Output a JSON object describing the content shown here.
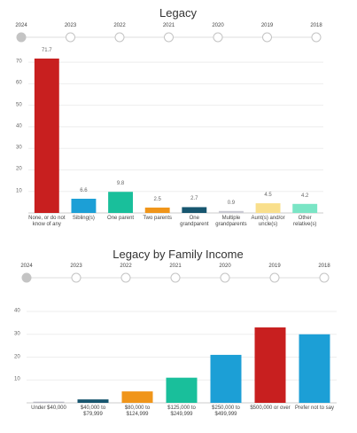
{
  "chart_data": [
    {
      "type": "bar",
      "title": "Legacy",
      "years": [
        "2024",
        "2023",
        "2022",
        "2021",
        "2020",
        "2019",
        "2018"
      ],
      "categories": [
        "None, or do not know of any",
        "Sibling(s)",
        "One parent",
        "Two parents",
        "One grandparent",
        "Multiple grandparents",
        "Aunt(s) and/or uncle(s)",
        "Other relative(s)"
      ],
      "values": [
        71.7,
        6.6,
        9.8,
        2.5,
        2.7,
        0.9,
        4.5,
        4.2
      ],
      "colors": [
        "#c81f1f",
        "#1c9fd6",
        "#19bf9b",
        "#f0951a",
        "#17566f",
        "#c9c9d2",
        "#f9df8c",
        "#7ae5c5"
      ],
      "ylim": [
        0,
        75
      ],
      "yticks": [
        10,
        20,
        30,
        40,
        50,
        60,
        70
      ],
      "grid": true,
      "show_values": true
    },
    {
      "type": "bar",
      "title": "Legacy by Family Income",
      "years": [
        "2024",
        "2023",
        "2022",
        "2021",
        "2020",
        "2019",
        "2018"
      ],
      "categories": [
        "Under $40,000",
        "$40,000 to $79,999",
        "$80,000 to $124,999",
        "$125,000 to $249,999",
        "$250,000 to $499,999",
        "$500,000 or over",
        "Prefer not to say"
      ],
      "values": [
        0.5,
        1.5,
        5,
        11,
        21,
        33,
        30
      ],
      "colors": [
        "#b9b9c2",
        "#17566f",
        "#f0951a",
        "#19bf9b",
        "#1c9fd6",
        "#c81f1f",
        "#1c9fd6"
      ],
      "ylim": [
        0,
        40
      ],
      "yticks": [
        10,
        20,
        30,
        40
      ],
      "grid": true,
      "show_values": false
    }
  ]
}
